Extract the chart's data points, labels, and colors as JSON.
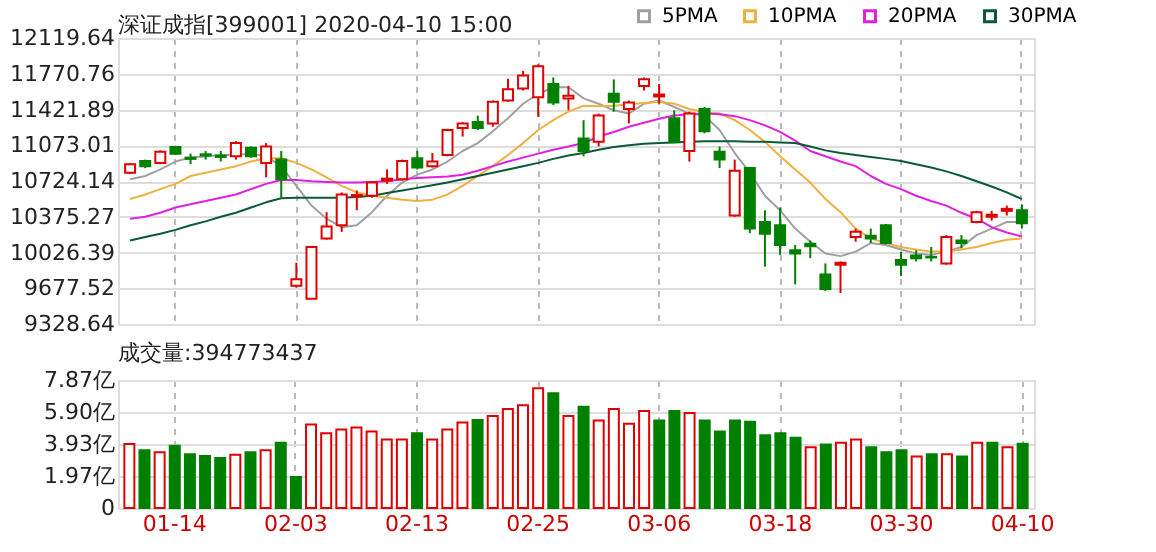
{
  "chart_data": [
    {
      "type": "candlestick",
      "title": "深证成指[399001] 2020-04-10 15:00",
      "categories": [
        null,
        null,
        null,
        null,
        null,
        null,
        null,
        null,
        null,
        null,
        null,
        null,
        null,
        null,
        null,
        null,
        null,
        null,
        null,
        null,
        null,
        null,
        null,
        null,
        null,
        null,
        null,
        null,
        null,
        null,
        null,
        null,
        null,
        null,
        null,
        null,
        null,
        null,
        null,
        null,
        null,
        null,
        null,
        null,
        null,
        null,
        null,
        null,
        null,
        null,
        null,
        null,
        null,
        null,
        null,
        null,
        null,
        null,
        null,
        null
      ],
      "ohlc": [
        [
          10805,
          10901,
          10792,
          10888
        ],
        [
          10920,
          10933,
          10850,
          10869
        ],
        [
          10901,
          11023,
          10888,
          11010
        ],
        [
          11055,
          11068,
          10978,
          10991
        ],
        [
          10952,
          10991,
          10888,
          10940
        ],
        [
          10985,
          11017,
          10933,
          10972
        ],
        [
          10972,
          11017,
          10914,
          10959
        ],
        [
          10965,
          11113,
          10933,
          11094
        ],
        [
          11049,
          11061,
          10952,
          10965
        ],
        [
          10901,
          11094,
          10760,
          11061
        ],
        [
          10933,
          11017,
          10548,
          10741
        ],
        [
          9702,
          9926,
          9683,
          9766
        ],
        [
          9574,
          10080,
          9574,
          10080
        ],
        [
          10164,
          10420,
          10151,
          10279
        ],
        [
          10292,
          10613,
          10228,
          10593
        ],
        [
          10574,
          10632,
          10439,
          10587
        ],
        [
          10580,
          10722,
          10561,
          10709
        ],
        [
          10728,
          10837,
          10696,
          10747
        ],
        [
          10741,
          10933,
          10728,
          10920
        ],
        [
          10946,
          11017,
          10837,
          10856
        ],
        [
          10869,
          10997,
          10856,
          10914
        ],
        [
          10978,
          11235,
          10965,
          11222
        ],
        [
          11241,
          11299,
          11158,
          11286
        ],
        [
          11299,
          11363,
          11222,
          11241
        ],
        [
          11286,
          11510,
          11254,
          11498
        ],
        [
          11510,
          11722,
          11498,
          11619
        ],
        [
          11626,
          11799,
          11607,
          11754
        ],
        [
          11542,
          11863,
          11350,
          11844
        ],
        [
          11671,
          11735,
          11466,
          11491
        ],
        [
          11530,
          11652,
          11414,
          11555
        ],
        [
          11138,
          11318,
          10965,
          11017
        ],
        [
          11106,
          11382,
          11061,
          11363
        ],
        [
          11575,
          11716,
          11401,
          11498
        ],
        [
          11427,
          11510,
          11286,
          11491
        ],
        [
          11652,
          11735,
          11607,
          11716
        ],
        [
          11549,
          11671,
          11478,
          11568
        ],
        [
          11337,
          11414,
          11094,
          11106
        ],
        [
          11017,
          11401,
          10914,
          11382
        ],
        [
          11427,
          11446,
          11190,
          11209
        ],
        [
          11010,
          11061,
          10850,
          10933
        ],
        [
          10388,
          10933,
          10375,
          10824
        ],
        [
          10850,
          10856,
          10215,
          10260
        ],
        [
          10324,
          10439,
          9888,
          10209
        ],
        [
          10292,
          10465,
          10003,
          10100
        ],
        [
          10048,
          10100,
          9715,
          10016
        ],
        [
          10112,
          10144,
          9971,
          10087
        ],
        [
          9811,
          9920,
          9651,
          9670
        ],
        [
          9907,
          9939,
          9631,
          9926
        ],
        [
          10177,
          10260,
          10132,
          10228
        ],
        [
          10189,
          10260,
          10119,
          10164
        ],
        [
          10292,
          10305,
          10106,
          10119
        ],
        [
          9952,
          10035,
          9798,
          9907
        ],
        [
          9997,
          10048,
          9939,
          9971
        ],
        [
          9984,
          10080,
          9939,
          9978
        ],
        [
          9920,
          10196,
          9907,
          10177
        ],
        [
          10144,
          10196,
          10068,
          10119
        ],
        [
          10324,
          10433,
          10311,
          10420
        ],
        [
          10375,
          10433,
          10337,
          10395
        ],
        [
          10433,
          10484,
          10388,
          10452
        ],
        [
          10439,
          10497,
          10260,
          10311
        ]
      ],
      "colors": [
        "#e00000",
        "#008000",
        "#e00000",
        "#008000",
        "#008000",
        "#008000",
        "#008000",
        "#e00000",
        "#008000",
        "#e00000",
        "#008000",
        "#e00000",
        "#e00000",
        "#e00000",
        "#e00000",
        "#e00000",
        "#e00000",
        "#e00000",
        "#e00000",
        "#008000",
        "#e00000",
        "#e00000",
        "#e00000",
        "#008000",
        "#e00000",
        "#e00000",
        "#e00000",
        "#e00000",
        "#008000",
        "#e00000",
        "#008000",
        "#e00000",
        "#008000",
        "#e00000",
        "#e00000",
        "#e00000",
        "#008000",
        "#e00000",
        "#008000",
        "#008000",
        "#e00000",
        "#008000",
        "#008000",
        "#008000",
        "#008000",
        "#008000",
        "#008000",
        "#e00000",
        "#e00000",
        "#008000",
        "#008000",
        "#008000",
        "#008000",
        "#008000",
        "#e00000",
        "#008000",
        "#e00000",
        "#e00000",
        "#e00000",
        "#008000"
      ],
      "series": [
        {
          "name": "5PMA",
          "type": "line",
          "color": "#a0a0a0",
          "values": [
            10741,
            10773,
            10837,
            10914,
            10952,
            10965,
            10978,
            10978,
            10991,
            10965,
            10869,
            10677,
            10484,
            10356,
            10273,
            10292,
            10420,
            10580,
            10709,
            10786,
            10837,
            10914,
            11017,
            11094,
            11209,
            11337,
            11478,
            11575,
            11639,
            11639,
            11530,
            11478,
            11414,
            11382,
            11478,
            11510,
            11446,
            11382,
            11363,
            11222,
            10997,
            10805,
            10580,
            10439,
            10260,
            10132,
            10016,
            9991,
            10035,
            10119,
            10100,
            10055,
            10016,
            10003,
            10035,
            10080,
            10196,
            10260,
            10324,
            10324
          ]
        },
        {
          "name": "10PMA",
          "type": "line",
          "color": "#f0b040",
          "values": [
            10548,
            10593,
            10645,
            10696,
            10773,
            10805,
            10837,
            10869,
            10914,
            10946,
            10946,
            10901,
            10837,
            10760,
            10677,
            10613,
            10580,
            10561,
            10542,
            10529,
            10542,
            10593,
            10677,
            10773,
            10869,
            10978,
            11094,
            11222,
            11318,
            11401,
            11459,
            11453,
            11459,
            11472,
            11485,
            11498,
            11478,
            11427,
            11395,
            11382,
            11318,
            11222,
            11106,
            10965,
            10837,
            10709,
            10548,
            10420,
            10260,
            10164,
            10119,
            10080,
            10055,
            10035,
            10035,
            10055,
            10080,
            10119,
            10151,
            10164
          ]
        },
        {
          "name": "20PMA",
          "type": "line",
          "color": "#e020e0",
          "values": [
            10356,
            10375,
            10414,
            10465,
            10497,
            10529,
            10561,
            10593,
            10645,
            10696,
            10734,
            10734,
            10722,
            10715,
            10709,
            10709,
            10715,
            10722,
            10741,
            10754,
            10760,
            10767,
            10786,
            10824,
            10869,
            10914,
            10952,
            10991,
            11029,
            11061,
            11094,
            11158,
            11203,
            11254,
            11292,
            11331,
            11363,
            11376,
            11382,
            11376,
            11357,
            11318,
            11267,
            11203,
            11119,
            11017,
            10965,
            10914,
            10869,
            10773,
            10696,
            10645,
            10580,
            10529,
            10484,
            10414,
            10356,
            10273,
            10221,
            10183
          ]
        },
        {
          "name": "30PMA",
          "type": "line",
          "color": "#0a5a3a",
          "values": [
            10144,
            10177,
            10209,
            10247,
            10292,
            10330,
            10375,
            10414,
            10465,
            10516,
            10555,
            10561,
            10561,
            10561,
            10561,
            10568,
            10580,
            10606,
            10632,
            10657,
            10683,
            10709,
            10741,
            10773,
            10805,
            10837,
            10869,
            10901,
            10940,
            10972,
            10997,
            11029,
            11055,
            11074,
            11087,
            11094,
            11100,
            11106,
            11113,
            11113,
            11113,
            11106,
            11106,
            11100,
            11094,
            11061,
            11023,
            10997,
            10978,
            10959,
            10940,
            10920,
            10888,
            10856,
            10818,
            10773,
            10722,
            10670,
            10613,
            10548
          ]
        }
      ],
      "ylim": [
        9328.64,
        12119.64
      ],
      "yticks": [
        9328.64,
        9677.52,
        10026.39,
        10375.27,
        10724.14,
        11073.01,
        11421.89,
        11770.76,
        12119.64
      ],
      "grid": true,
      "legend": "top right",
      "tick_labels": "y"
    },
    {
      "type": "bar",
      "title": "成交量:394773437",
      "categories": [
        null,
        null,
        null,
        "01-14",
        null,
        null,
        null,
        null,
        null,
        null,
        null,
        "02-03",
        null,
        null,
        null,
        null,
        null,
        null,
        null,
        "02-13",
        null,
        null,
        null,
        null,
        null,
        null,
        null,
        "02-25",
        null,
        null,
        null,
        null,
        null,
        null,
        null,
        "03-06",
        null,
        null,
        null,
        null,
        null,
        null,
        null,
        "03-18",
        null,
        null,
        null,
        null,
        null,
        null,
        null,
        "03-30",
        null,
        null,
        null,
        null,
        null,
        null,
        null,
        "04-10"
      ],
      "values": [
        3.93,
        3.55,
        3.43,
        3.82,
        3.31,
        3.19,
        3.08,
        3.27,
        3.43,
        3.55,
        4.01,
        1.91,
        5.14,
        4.6,
        4.83,
        4.95,
        4.71,
        4.21,
        4.21,
        4.6,
        4.21,
        4.83,
        5.26,
        5.41,
        5.65,
        6.08,
        6.31,
        7.36,
        7.05,
        5.65,
        6.23,
        5.38,
        6.08,
        5.18,
        5.96,
        5.38,
        5.96,
        5.84,
        5.38,
        4.71,
        5.38,
        5.3,
        4.48,
        4.6,
        4.32,
        3.74,
        3.9,
        4.01,
        4.21,
        3.74,
        3.43,
        3.55,
        3.16,
        3.31,
        3.31,
        3.16,
        4.01,
        4.01,
        3.74,
        3.95
      ],
      "colors": [
        "#e00000",
        "#008000",
        "#e00000",
        "#008000",
        "#008000",
        "#008000",
        "#008000",
        "#e00000",
        "#008000",
        "#e00000",
        "#008000",
        "#008000",
        "#e00000",
        "#e00000",
        "#e00000",
        "#e00000",
        "#e00000",
        "#e00000",
        "#e00000",
        "#008000",
        "#e00000",
        "#e00000",
        "#e00000",
        "#008000",
        "#e00000",
        "#e00000",
        "#e00000",
        "#e00000",
        "#008000",
        "#e00000",
        "#008000",
        "#e00000",
        "#e00000",
        "#e00000",
        "#e00000",
        "#008000",
        "#008000",
        "#e00000",
        "#008000",
        "#008000",
        "#008000",
        "#008000",
        "#008000",
        "#008000",
        "#008000",
        "#e00000",
        "#008000",
        "#e00000",
        "#e00000",
        "#008000",
        "#008000",
        "#008000",
        "#e00000",
        "#008000",
        "#e00000",
        "#008000",
        "#e00000",
        "#008000",
        "#e00000",
        "#008000"
      ],
      "ylim": [
        0,
        7.87
      ],
      "yticks": [
        0,
        {
          "value": 1.97,
          "label": "1.97亿"
        },
        {
          "value": 3.93,
          "label": "3.93亿"
        },
        {
          "value": 5.9,
          "label": "5.90亿"
        },
        {
          "value": 7.87,
          "label": "7.87亿"
        }
      ],
      "grid": true
    }
  ]
}
